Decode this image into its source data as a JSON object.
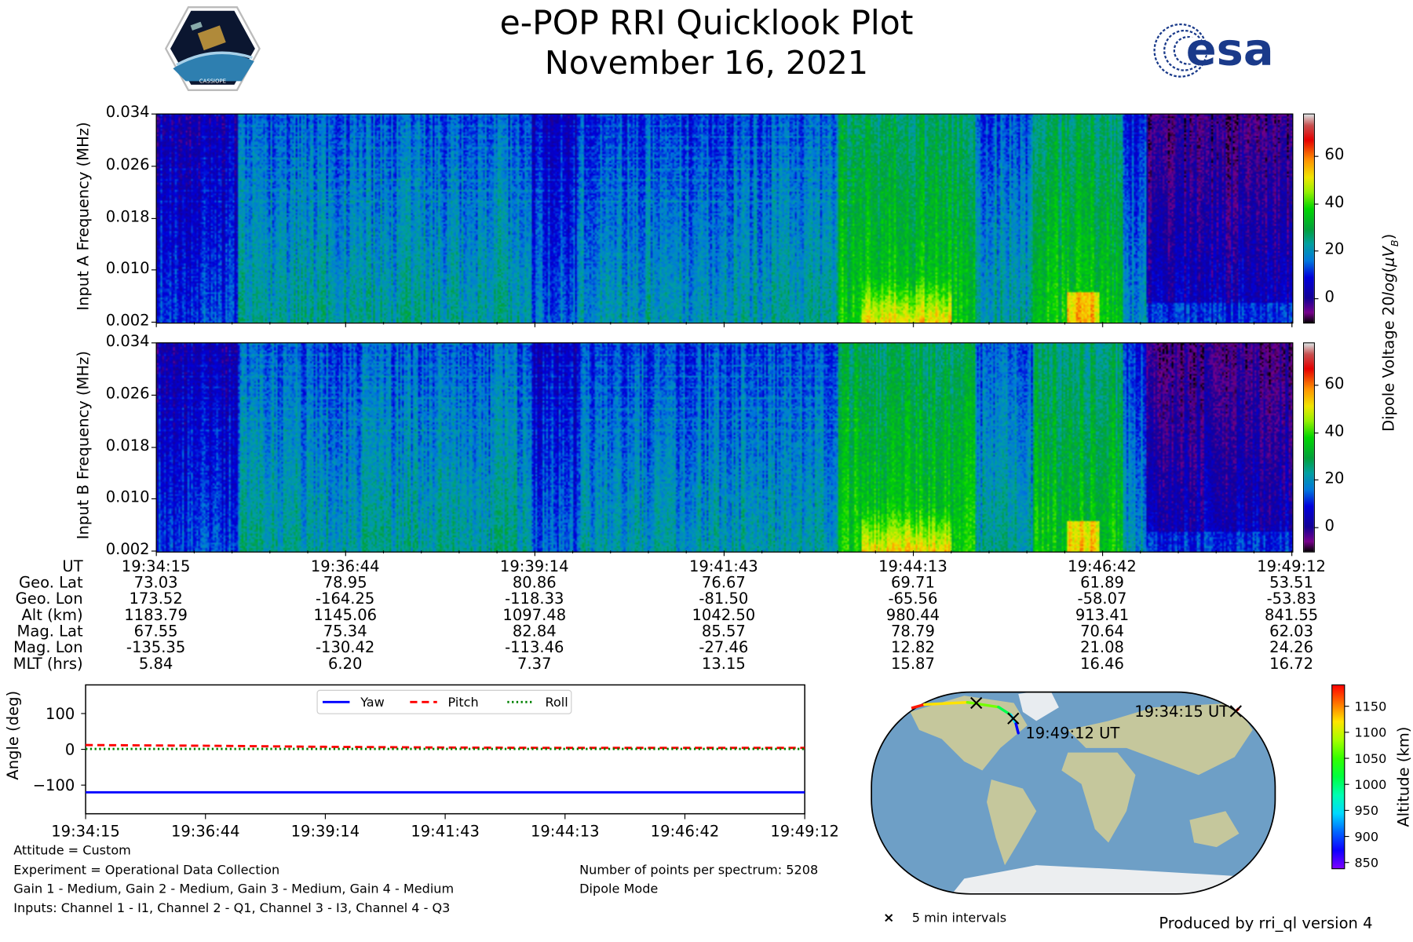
{
  "header": {
    "title": "e-POP RRI Quicklook Plot",
    "date": "November 16, 2021",
    "left_logo_text": "CASSIOPE",
    "right_logo_text": "esa"
  },
  "colors": {
    "yaw": "#0000ff",
    "pitch": "#ff0000",
    "roll": "#008000"
  },
  "chart_data": [
    {
      "type": "heatmap",
      "name": "spectrogram-input-a",
      "ylabel": "Input A Frequency (MHz)",
      "yticks": [
        "0.034",
        "0.026",
        "0.018",
        "0.010",
        "0.002"
      ],
      "ylim": [
        0.002,
        0.034
      ],
      "xlim": [
        "19:34:15",
        "19:49:12"
      ],
      "colorbar": {
        "label": "Dipole Voltage 20log(μV_B)",
        "ticks": [
          "60",
          "40",
          "20",
          "0"
        ],
        "range": [
          -10,
          78
        ]
      }
    },
    {
      "type": "heatmap",
      "name": "spectrogram-input-b",
      "ylabel": "Input B Frequency (MHz)",
      "yticks": [
        "0.034",
        "0.026",
        "0.018",
        "0.010",
        "0.002"
      ],
      "ylim": [
        0.002,
        0.034
      ],
      "xlim": [
        "19:34:15",
        "19:49:12"
      ],
      "colorbar": {
        "ticks": [
          "60",
          "40",
          "20",
          "0"
        ],
        "range": [
          -10,
          78
        ]
      }
    },
    {
      "type": "table",
      "name": "orbit-table",
      "row_labels": [
        "UT",
        "Geo. Lat",
        "Geo. Lon",
        "Alt (km)",
        "Mag. Lat",
        "Mag. Lon",
        "MLT (hrs)"
      ],
      "columns": [
        [
          "19:34:15",
          "73.03",
          "173.52",
          "1183.79",
          "67.55",
          "-135.35",
          "5.84"
        ],
        [
          "19:36:44",
          "78.95",
          "-164.25",
          "1145.06",
          "75.34",
          "-130.42",
          "6.20"
        ],
        [
          "19:39:14",
          "80.86",
          "-118.33",
          "1097.48",
          "82.84",
          "-113.46",
          "7.37"
        ],
        [
          "19:41:43",
          "76.67",
          "-81.50",
          "1042.50",
          "85.57",
          "-27.46",
          "13.15"
        ],
        [
          "19:44:13",
          "69.71",
          "-65.56",
          "980.44",
          "78.79",
          "12.82",
          "15.87"
        ],
        [
          "19:46:42",
          "61.89",
          "-58.07",
          "913.41",
          "70.64",
          "21.08",
          "16.46"
        ],
        [
          "19:49:12",
          "53.51",
          "-53.83",
          "841.55",
          "62.03",
          "24.26",
          "16.72"
        ]
      ]
    },
    {
      "type": "line",
      "name": "attitude-plot",
      "ylabel": "Angle (deg)",
      "ylim": [
        -180,
        180
      ],
      "yticks": [
        "100",
        "0",
        "−100"
      ],
      "ytick_values": [
        100,
        0,
        -100
      ],
      "x": [
        "19:34:15",
        "19:36:44",
        "19:39:14",
        "19:41:43",
        "19:44:13",
        "19:46:42",
        "19:49:12"
      ],
      "series": [
        {
          "name": "Yaw",
          "values": [
            -120,
            -120,
            -120,
            -120,
            -120,
            -120,
            -120
          ]
        },
        {
          "name": "Pitch",
          "values": [
            12,
            10,
            7,
            5,
            4,
            4,
            4
          ]
        },
        {
          "name": "Roll",
          "values": [
            1,
            1,
            1,
            1,
            1,
            1,
            1
          ]
        }
      ]
    },
    {
      "type": "scatter",
      "name": "orbit-map",
      "start_label": "19:34:15 UT",
      "end_label": "19:49:12 UT",
      "legend_marker": "×",
      "legend_label": "5 min intervals",
      "track_lat": [
        73.03,
        78.95,
        80.86,
        76.67,
        69.71,
        61.89,
        53.51
      ],
      "track_lon": [
        173.52,
        -164.25,
        -118.33,
        -81.5,
        -65.56,
        -58.07,
        -53.83
      ],
      "track_alt": [
        1183.79,
        1145.06,
        1097.48,
        1042.5,
        980.44,
        913.41,
        841.55
      ],
      "markers": [
        {
          "lat": 80.3,
          "lon": -108
        },
        {
          "lat": 66.5,
          "lon": -62
        }
      ],
      "colorbar": {
        "label": "Altitude (km)",
        "ticks": [
          "1150",
          "1100",
          "1050",
          "1000",
          "950",
          "900",
          "850"
        ],
        "range": [
          838,
          1191
        ]
      }
    }
  ],
  "notes": {
    "attitude": "Attitude = Custom",
    "experiment": "Experiment = Operational Data Collection",
    "gains": "Gain 1 - Medium, Gain 2 - Medium, Gain 3 - Medium, Gain 4 - Medium",
    "inputs": "Inputs: Channel 1 - I1, Channel 2 - Q1, Channel 3 - I3, Channel 4 - Q3",
    "points": "Number of points per spectrum: 5208",
    "mode": "Dipole Mode",
    "produced_by": "Produced by rri_ql version 4"
  }
}
